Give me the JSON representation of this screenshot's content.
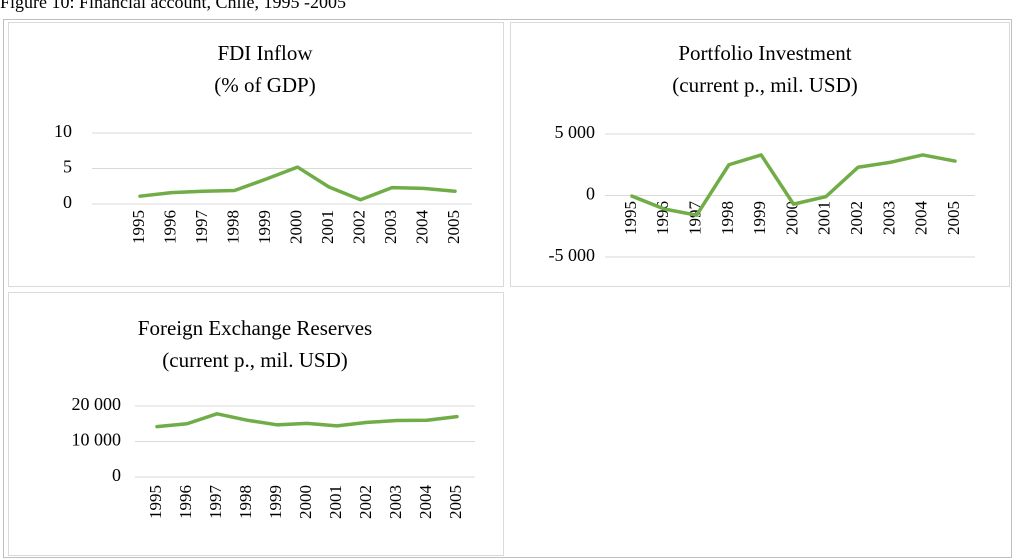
{
  "caption": "Figure 10: Financial account, Chile, 1995 -2005",
  "chart_data": [
    {
      "type": "line",
      "title": [
        "FDI Inflow",
        "(% of GDP)"
      ],
      "categories": [
        "1995",
        "1996",
        "1997",
        "1998",
        "1999",
        "2000",
        "2001",
        "2002",
        "2003",
        "2004",
        "2005"
      ],
      "series": [
        {
          "color": "#70ad47",
          "values": [
            1.1,
            1.6,
            1.8,
            1.9,
            3.5,
            5.2,
            2.4,
            0.6,
            2.3,
            2.2,
            1.8
          ]
        }
      ],
      "ylim": [
        0,
        10
      ],
      "yticks": [
        0,
        5,
        10
      ],
      "grid": true
    },
    {
      "type": "line",
      "title": [
        "Portfolio Investment",
        "(current p., mil. USD)"
      ],
      "categories": [
        "1995",
        "1996",
        "1997",
        "1998",
        "1999",
        "2000",
        "2001",
        "2002",
        "2003",
        "2004",
        "2005"
      ],
      "series": [
        {
          "color": "#70ad47",
          "values": [
            -50,
            -1100,
            -1600,
            2500,
            3300,
            -700,
            -100,
            2300,
            2700,
            3300,
            2800
          ]
        }
      ],
      "ylim": [
        -5000,
        5000
      ],
      "yticks": [
        {
          "value": -5000,
          "label": "-5 000"
        },
        0,
        {
          "value": 5000,
          "label": "5 000"
        }
      ],
      "grid": true
    },
    {
      "type": "line",
      "title": [
        "Foreign Exchange Reserves",
        "(current p., mil. USD)"
      ],
      "categories": [
        "1995",
        "1996",
        "1997",
        "1998",
        "1999",
        "2000",
        "2001",
        "2002",
        "2003",
        "2004",
        "2005"
      ],
      "series": [
        {
          "color": "#70ad47",
          "values": [
            14200,
            15000,
            17800,
            16000,
            14700,
            15100,
            14400,
            15400,
            15900,
            16000,
            17000
          ]
        }
      ],
      "ylim": [
        0,
        20000
      ],
      "yticks": [
        0,
        {
          "value": 10000,
          "label": "10 000"
        },
        {
          "value": 20000,
          "label": "20 000"
        }
      ],
      "grid": true
    }
  ]
}
